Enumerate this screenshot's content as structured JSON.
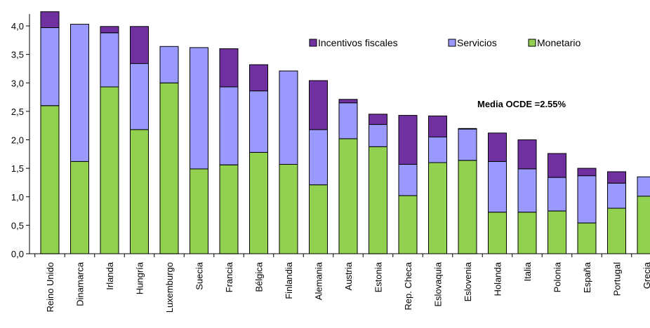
{
  "chart_data": {
    "type": "bar",
    "stacked": true,
    "categories": [
      "Reino Unido",
      "Dinamarca",
      "Irlanda",
      "Hungría",
      "Luxemburgo",
      "Suecia",
      "Francia",
      "Bélgica",
      "Finlandia",
      "Alemania",
      "Austria",
      "Estonia",
      "Rep. Checa",
      "Eslovaquia",
      "Eslovenia",
      "Holanda",
      "Italia",
      "Polonia",
      "España",
      "Portugal",
      "Grecia"
    ],
    "series": [
      {
        "name": "Monetario",
        "color": "#92D050",
        "values": [
          2.6,
          1.62,
          2.93,
          2.18,
          3.0,
          1.49,
          1.56,
          1.78,
          1.57,
          1.21,
          2.02,
          1.88,
          1.02,
          1.6,
          1.64,
          0.73,
          0.73,
          0.75,
          0.54,
          0.8,
          1.01
        ]
      },
      {
        "name": "Servicios",
        "color": "#9999FF",
        "values": [
          1.37,
          2.41,
          0.95,
          1.16,
          0.64,
          2.13,
          1.37,
          1.08,
          1.64,
          0.97,
          0.63,
          0.39,
          0.55,
          0.45,
          0.55,
          0.89,
          0.76,
          0.59,
          0.83,
          0.44,
          0.34
        ]
      },
      {
        "name": "Incentivos fiscales",
        "color": "#7030A0",
        "values": [
          0.28,
          0.0,
          0.11,
          0.65,
          0.0,
          0.0,
          0.67,
          0.46,
          0.0,
          0.86,
          0.06,
          0.18,
          0.86,
          0.37,
          0.01,
          0.5,
          0.51,
          0.42,
          0.13,
          0.2,
          0.0
        ]
      }
    ],
    "legend": [
      "Incentivos fiscales",
      "Servicios",
      "Monetario"
    ],
    "legend_position": "top-right",
    "ylim": [
      0,
      4.25
    ],
    "yticks": [
      "0,0",
      "0,5",
      "1,0",
      "1,5",
      "2,0",
      "2,5",
      "3,0",
      "3,5",
      "4,0"
    ],
    "ytick_values": [
      0,
      0.5,
      1,
      1.5,
      2,
      2.5,
      3,
      3.5,
      4
    ],
    "annotation": "Media OCDE =2.55%",
    "grid": false
  }
}
